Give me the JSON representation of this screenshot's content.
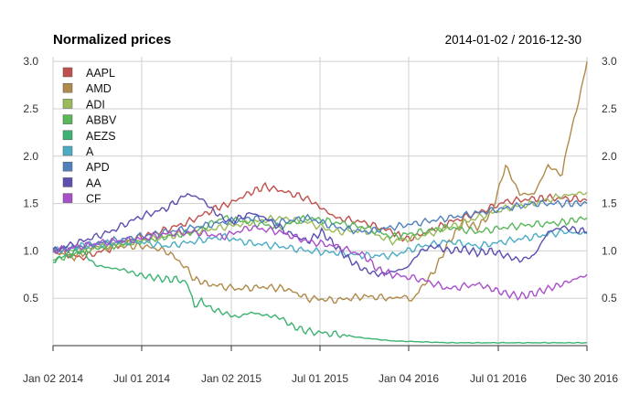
{
  "chart_data": {
    "type": "line",
    "title": "Normalized prices",
    "date_range": "2014-01-02 / 2016-12-30",
    "xlabel": "",
    "ylabel": "",
    "x_ticks": [
      "Jan 02 2014",
      "Jul 01 2014",
      "Jan 02 2015",
      "Jul 01 2015",
      "Jan 04 2016",
      "Jul 01 2016",
      "Dec 30 2016"
    ],
    "y_ticks": [
      "0.5",
      "1.0",
      "1.5",
      "2.0",
      "2.5",
      "3.0"
    ],
    "ylim": [
      0.0,
      3.05
    ],
    "grid": true,
    "legend_position": "top-left",
    "series": [
      {
        "name": "AAPL",
        "color": "#c0504d",
        "points": [
          [
            0,
            1.0
          ],
          [
            40,
            0.93
          ],
          [
            80,
            1.02
          ],
          [
            110,
            1.12
          ],
          [
            150,
            1.2
          ],
          [
            190,
            1.3
          ],
          [
            230,
            1.45
          ],
          [
            250,
            1.5
          ],
          [
            280,
            1.62
          ],
          [
            300,
            1.68
          ],
          [
            330,
            1.62
          ],
          [
            360,
            1.55
          ],
          [
            380,
            1.45
          ],
          [
            400,
            1.35
          ],
          [
            440,
            1.3
          ],
          [
            480,
            1.2
          ],
          [
            500,
            1.12
          ],
          [
            530,
            1.2
          ],
          [
            560,
            1.3
          ],
          [
            600,
            1.4
          ],
          [
            640,
            1.52
          ],
          [
            680,
            1.55
          ],
          [
            700,
            1.56
          ],
          [
            740,
            1.55
          ],
          [
            755,
            1.53
          ]
        ]
      },
      {
        "name": "AMD",
        "color": "#b08a4a",
        "points": [
          [
            0,
            1.0
          ],
          [
            30,
            0.93
          ],
          [
            60,
            1.05
          ],
          [
            100,
            1.05
          ],
          [
            130,
            1.05
          ],
          [
            160,
            1.0
          ],
          [
            185,
            0.85
          ],
          [
            200,
            0.7
          ],
          [
            220,
            0.65
          ],
          [
            260,
            0.6
          ],
          [
            300,
            0.62
          ],
          [
            330,
            0.6
          ],
          [
            360,
            0.5
          ],
          [
            400,
            0.48
          ],
          [
            440,
            0.52
          ],
          [
            480,
            0.5
          ],
          [
            500,
            0.52
          ],
          [
            510,
            0.48
          ],
          [
            520,
            0.6
          ],
          [
            540,
            0.8
          ],
          [
            560,
            1.1
          ],
          [
            580,
            1.3
          ],
          [
            600,
            1.25
          ],
          [
            620,
            1.4
          ],
          [
            640,
            1.9
          ],
          [
            660,
            1.6
          ],
          [
            680,
            1.6
          ],
          [
            700,
            1.9
          ],
          [
            720,
            1.8
          ],
          [
            730,
            2.2
          ],
          [
            740,
            2.5
          ],
          [
            750,
            2.8
          ],
          [
            755,
            3.0
          ]
        ]
      },
      {
        "name": "ADI",
        "color": "#9bbb59",
        "points": [
          [
            0,
            1.0
          ],
          [
            40,
            1.02
          ],
          [
            80,
            1.05
          ],
          [
            120,
            1.1
          ],
          [
            160,
            1.15
          ],
          [
            200,
            1.2
          ],
          [
            240,
            1.25
          ],
          [
            280,
            1.3
          ],
          [
            320,
            1.35
          ],
          [
            360,
            1.3
          ],
          [
            400,
            1.2
          ],
          [
            440,
            1.22
          ],
          [
            480,
            1.1
          ],
          [
            520,
            1.15
          ],
          [
            560,
            1.25
          ],
          [
            600,
            1.35
          ],
          [
            640,
            1.45
          ],
          [
            680,
            1.5
          ],
          [
            720,
            1.58
          ],
          [
            755,
            1.62
          ]
        ]
      },
      {
        "name": "ABBV",
        "color": "#5ab75a",
        "points": [
          [
            0,
            0.9
          ],
          [
            40,
            1.0
          ],
          [
            80,
            1.05
          ],
          [
            120,
            1.1
          ],
          [
            160,
            1.15
          ],
          [
            200,
            1.2
          ],
          [
            240,
            1.35
          ],
          [
            280,
            1.3
          ],
          [
            320,
            1.25
          ],
          [
            360,
            1.35
          ],
          [
            400,
            1.3
          ],
          [
            440,
            1.25
          ],
          [
            480,
            1.15
          ],
          [
            520,
            1.2
          ],
          [
            560,
            1.25
          ],
          [
            600,
            1.2
          ],
          [
            640,
            1.25
          ],
          [
            680,
            1.28
          ],
          [
            720,
            1.3
          ],
          [
            755,
            1.35
          ]
        ]
      },
      {
        "name": "AEZS",
        "color": "#3cb371",
        "points": [
          [
            0,
            0.9
          ],
          [
            40,
            1.0
          ],
          [
            60,
            0.85
          ],
          [
            80,
            0.82
          ],
          [
            100,
            0.8
          ],
          [
            120,
            0.75
          ],
          [
            140,
            0.72
          ],
          [
            160,
            0.7
          ],
          [
            180,
            0.7
          ],
          [
            190,
            0.65
          ],
          [
            200,
            0.4
          ],
          [
            210,
            0.5
          ],
          [
            220,
            0.4
          ],
          [
            240,
            0.35
          ],
          [
            260,
            0.3
          ],
          [
            280,
            0.35
          ],
          [
            300,
            0.32
          ],
          [
            320,
            0.3
          ],
          [
            340,
            0.2
          ],
          [
            360,
            0.15
          ],
          [
            400,
            0.12
          ],
          [
            440,
            0.08
          ],
          [
            480,
            0.05
          ],
          [
            520,
            0.04
          ],
          [
            560,
            0.03
          ],
          [
            600,
            0.03
          ],
          [
            640,
            0.03
          ],
          [
            680,
            0.03
          ],
          [
            720,
            0.03
          ],
          [
            755,
            0.03
          ]
        ]
      },
      {
        "name": "A",
        "color": "#4bacc6",
        "points": [
          [
            0,
            1.0
          ],
          [
            40,
            1.05
          ],
          [
            80,
            1.08
          ],
          [
            120,
            1.1
          ],
          [
            160,
            1.05
          ],
          [
            200,
            1.1
          ],
          [
            240,
            1.15
          ],
          [
            280,
            1.08
          ],
          [
            320,
            1.05
          ],
          [
            360,
            1.0
          ],
          [
            400,
            0.98
          ],
          [
            440,
            0.95
          ],
          [
            480,
            0.95
          ],
          [
            520,
            1.05
          ],
          [
            560,
            1.1
          ],
          [
            600,
            1.05
          ],
          [
            640,
            1.1
          ],
          [
            680,
            1.15
          ],
          [
            720,
            1.2
          ],
          [
            755,
            1.18
          ]
        ]
      },
      {
        "name": "APD",
        "color": "#4f81bd",
        "points": [
          [
            0,
            1.0
          ],
          [
            40,
            1.05
          ],
          [
            80,
            1.1
          ],
          [
            120,
            1.15
          ],
          [
            160,
            1.2
          ],
          [
            200,
            1.25
          ],
          [
            240,
            1.3
          ],
          [
            280,
            1.35
          ],
          [
            320,
            1.3
          ],
          [
            360,
            1.35
          ],
          [
            400,
            1.25
          ],
          [
            440,
            1.2
          ],
          [
            480,
            1.25
          ],
          [
            520,
            1.3
          ],
          [
            560,
            1.35
          ],
          [
            600,
            1.4
          ],
          [
            640,
            1.45
          ],
          [
            680,
            1.5
          ],
          [
            720,
            1.5
          ],
          [
            755,
            1.5
          ]
        ]
      },
      {
        "name": "AA",
        "color": "#5b4fb0",
        "points": [
          [
            0,
            1.0
          ],
          [
            40,
            1.1
          ],
          [
            80,
            1.2
          ],
          [
            120,
            1.35
          ],
          [
            160,
            1.45
          ],
          [
            190,
            1.6
          ],
          [
            210,
            1.55
          ],
          [
            230,
            1.4
          ],
          [
            250,
            1.3
          ],
          [
            280,
            1.4
          ],
          [
            300,
            1.35
          ],
          [
            330,
            1.2
          ],
          [
            360,
            1.1
          ],
          [
            380,
            1.2
          ],
          [
            400,
            1.05
          ],
          [
            420,
            0.9
          ],
          [
            440,
            0.8
          ],
          [
            460,
            0.75
          ],
          [
            480,
            0.78
          ],
          [
            500,
            0.82
          ],
          [
            520,
            1.0
          ],
          [
            540,
            1.05
          ],
          [
            560,
            1.0
          ],
          [
            580,
            1.02
          ],
          [
            600,
            0.98
          ],
          [
            620,
            1.0
          ],
          [
            640,
            0.95
          ],
          [
            660,
            0.9
          ],
          [
            680,
            0.95
          ],
          [
            700,
            1.2
          ],
          [
            720,
            1.25
          ],
          [
            755,
            1.2
          ]
        ]
      },
      {
        "name": "CF",
        "color": "#a94fc9",
        "points": [
          [
            0,
            1.0
          ],
          [
            40,
            1.05
          ],
          [
            80,
            1.1
          ],
          [
            120,
            1.12
          ],
          [
            160,
            1.18
          ],
          [
            200,
            1.2
          ],
          [
            240,
            1.15
          ],
          [
            280,
            1.25
          ],
          [
            320,
            1.2
          ],
          [
            360,
            1.1
          ],
          [
            400,
            1.05
          ],
          [
            440,
            0.95
          ],
          [
            460,
            0.8
          ],
          [
            480,
            0.75
          ],
          [
            520,
            0.7
          ],
          [
            560,
            0.6
          ],
          [
            600,
            0.65
          ],
          [
            620,
            0.6
          ],
          [
            640,
            0.55
          ],
          [
            660,
            0.52
          ],
          [
            680,
            0.55
          ],
          [
            700,
            0.6
          ],
          [
            720,
            0.65
          ],
          [
            755,
            0.75
          ]
        ]
      }
    ]
  }
}
